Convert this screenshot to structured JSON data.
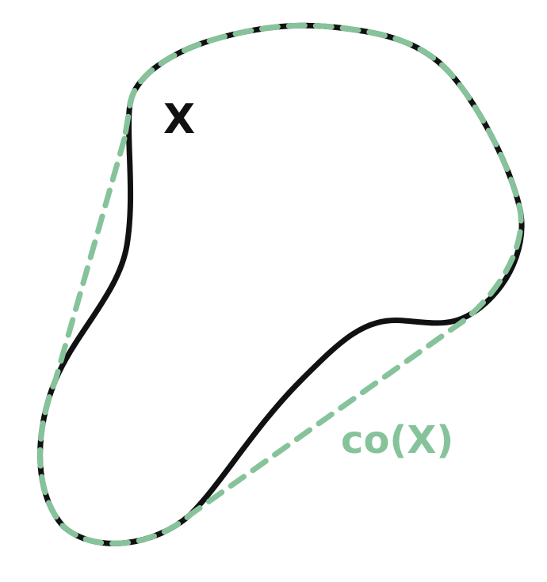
{
  "diagram": {
    "set_label": "X",
    "hull_label": "co(X)",
    "colors": {
      "set_outline": "#111111",
      "hull_outline": "#86c39b",
      "background": "#ffffff"
    }
  }
}
